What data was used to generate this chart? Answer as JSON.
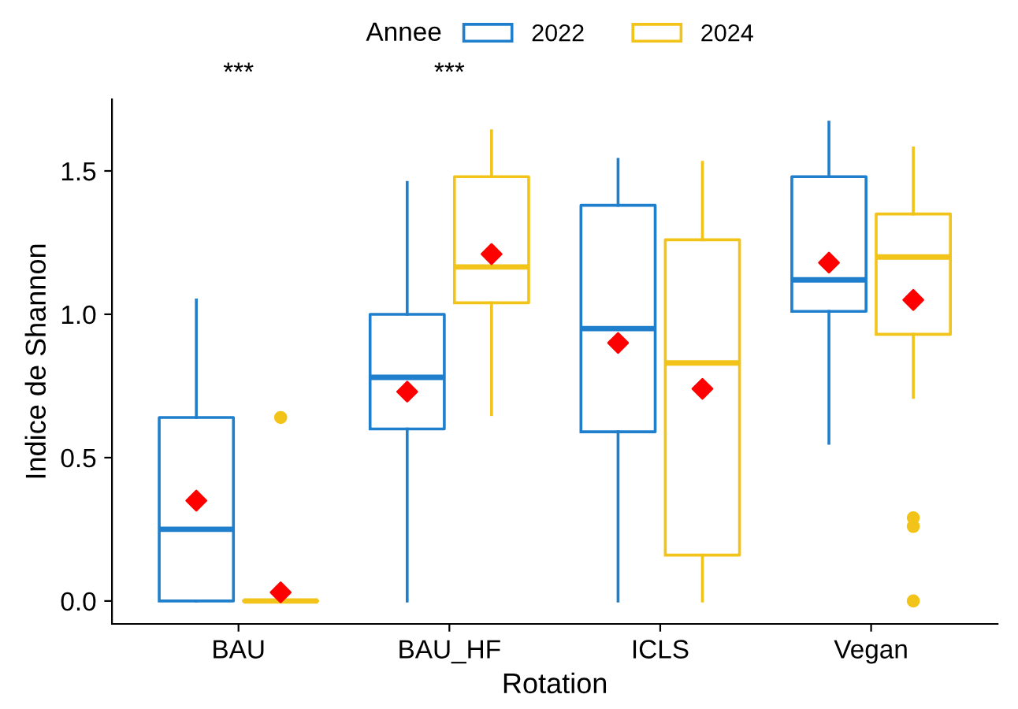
{
  "chart_data": {
    "type": "box",
    "xlabel": "Rotation",
    "ylabel": "Indice de Shannon",
    "legend_title": "Annee",
    "legend": "top",
    "grid": false,
    "marker": "diamond",
    "categories": [
      "BAU",
      "BAU_HF",
      "ICLS",
      "Vegan"
    ],
    "ylim": [
      -0.08,
      1.75
    ],
    "yticks": [
      {
        "value": 0,
        "label": "0.0"
      },
      {
        "value": 0.5,
        "label": "0.5"
      },
      {
        "value": 1,
        "label": "1.0"
      },
      {
        "value": 1.5,
        "label": "1.5"
      }
    ],
    "series": [
      {
        "name": "2022",
        "color": "#1f7fcc",
        "boxes": [
          {
            "low": 0,
            "q1": 0,
            "median": 0.25,
            "q3": 0.64,
            "high": 1.05,
            "mean": 0.35
          },
          {
            "low": 0,
            "q1": 0.6,
            "median": 0.78,
            "q3": 1.0,
            "high": 1.46,
            "mean": 0.73
          },
          {
            "low": 0,
            "q1": 0.59,
            "median": 0.95,
            "q3": 1.38,
            "high": 1.54,
            "mean": 0.9
          },
          {
            "low": 0.55,
            "q1": 1.01,
            "median": 1.12,
            "q3": 1.48,
            "high": 1.67,
            "mean": 1.18
          }
        ]
      },
      {
        "name": "2024",
        "color": "#f2c318",
        "boxes": [
          {
            "low": 0,
            "q1": 0,
            "median": 0,
            "q3": 0,
            "high": 0,
            "mean": 0.03,
            "outliers": [
              0.64
            ]
          },
          {
            "low": 0.65,
            "q1": 1.04,
            "median": 1.165,
            "q3": 1.48,
            "high": 1.64,
            "mean": 1.21
          },
          {
            "low": 0,
            "q1": 0.16,
            "median": 0.83,
            "q3": 1.26,
            "high": 1.53,
            "mean": 0.74
          },
          {
            "low": 0.71,
            "q1": 0.93,
            "median": 1.2,
            "q3": 1.35,
            "high": 1.58,
            "mean": 1.05,
            "outliers": [
              0.29,
              0.26,
              0
            ]
          }
        ]
      }
    ],
    "annotations": [
      "***",
      "***"
    ]
  }
}
